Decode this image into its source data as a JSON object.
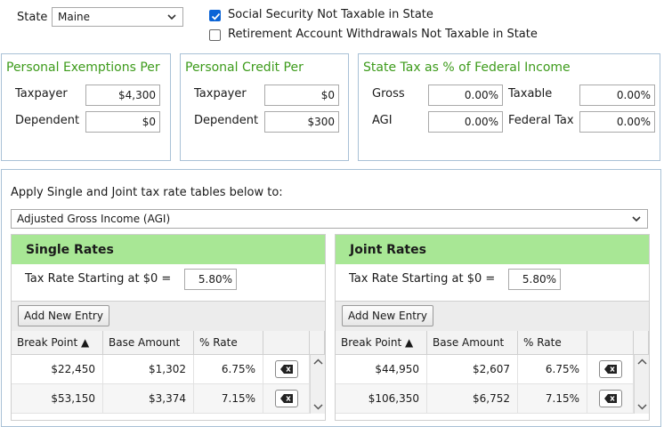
{
  "state": {
    "label": "State",
    "value": "Maine"
  },
  "checkboxes": [
    {
      "label": "Social Security Not Taxable in State",
      "checked": true
    },
    {
      "label": "Retirement Account Withdrawals Not Taxable in State",
      "checked": false
    }
  ],
  "personal_exemptions": {
    "title": "Personal Exemptions Per",
    "taxpayer_label": "Taxpayer",
    "taxpayer_value": "$4,300",
    "dependent_label": "Dependent",
    "dependent_value": "$0"
  },
  "personal_credit": {
    "title": "Personal Credit Per",
    "taxpayer_label": "Taxpayer",
    "taxpayer_value": "$0",
    "dependent_label": "Dependent",
    "dependent_value": "$300"
  },
  "state_tax": {
    "title": "State Tax as % of Federal Income",
    "gross_label": "Gross",
    "gross_value": "0.00%",
    "taxable_label": "Taxable",
    "taxable_value": "0.00%",
    "agi_label": "AGI",
    "agi_value": "0.00%",
    "federal_label": "Federal Tax",
    "federal_value": "0.00%"
  },
  "apply": {
    "label": "Apply Single and Joint tax rate tables below to:",
    "value": "Adjusted Gross Income (AGI)"
  },
  "single": {
    "title": "Single Rates",
    "start_label": "Tax Rate Starting at $0 =",
    "start_value": "5.80%",
    "add_label": "Add New Entry",
    "columns": [
      "Break Point ▲",
      "Base Amount",
      "% Rate"
    ],
    "rows": [
      {
        "break": "$22,450",
        "base": "$1,302",
        "rate": "6.75%"
      },
      {
        "break": "$53,150",
        "base": "$3,374",
        "rate": "7.15%"
      }
    ]
  },
  "joint": {
    "title": "Joint Rates",
    "start_label": "Tax Rate Starting at $0 =",
    "start_value": "5.80%",
    "add_label": "Add New Entry",
    "columns": [
      "Break Point ▲",
      "Base Amount",
      "% Rate"
    ],
    "rows": [
      {
        "break": "$44,950",
        "base": "$2,607",
        "rate": "6.75%"
      },
      {
        "break": "$106,350",
        "base": "$6,752",
        "rate": "7.15%"
      }
    ]
  },
  "colors": {
    "accent_green": "#3d9b1b",
    "header_green": "#a8e795",
    "check_blue": "#0b64d6"
  }
}
